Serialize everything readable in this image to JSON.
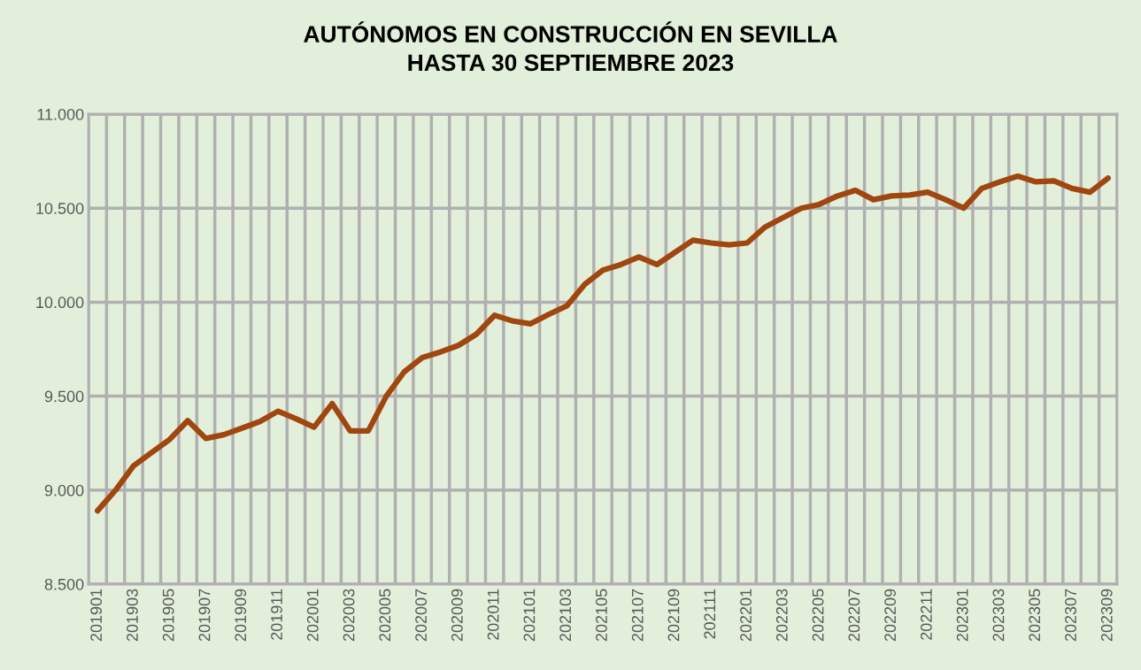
{
  "chart_data": {
    "type": "line",
    "title": "AUTÓNOMOS EN CONSTRUCCIÓN EN SEVILLA\nHASTA 30 SEPTIEMBRE 2023",
    "categories": [
      "201901",
      null,
      "201903",
      null,
      "201905",
      null,
      "201907",
      null,
      "201909",
      null,
      "201911",
      null,
      "202001",
      null,
      "202003",
      null,
      "202005",
      null,
      "202007",
      null,
      "202009",
      null,
      "202011",
      null,
      "202101",
      null,
      "202103",
      null,
      "202105",
      null,
      "202107",
      null,
      "202109",
      null,
      "202111",
      null,
      "202201",
      null,
      "202203",
      null,
      "202205",
      null,
      "202207",
      null,
      "202209",
      null,
      "202211",
      null,
      "202301",
      null,
      "202303",
      null,
      "202305",
      null,
      "202307",
      null,
      "202309"
    ],
    "series": [
      {
        "color": "#a0460e",
        "values": [
          8890,
          9000,
          9130,
          9200,
          9270,
          9370,
          9275,
          9295,
          9330,
          9365,
          9420,
          9380,
          9335,
          9460,
          9315,
          9315,
          9500,
          9630,
          9705,
          9735,
          9770,
          9830,
          9930,
          9900,
          9885,
          9935,
          9980,
          10095,
          10170,
          10200,
          10240,
          10200,
          10265,
          10330,
          10315,
          10305,
          10315,
          10400,
          10450,
          10500,
          10520,
          10565,
          10595,
          10545,
          10565,
          10570,
          10585,
          10545,
          10500,
          10605,
          10640,
          10670,
          10640,
          10645,
          10605,
          10585,
          10660
        ]
      }
    ],
    "ylim": [
      8500,
      11000
    ],
    "yticks": [
      {
        "value": 8500,
        "label": "8.500"
      },
      {
        "value": 9000,
        "label": "9.000"
      },
      {
        "value": 9500,
        "label": "9.500"
      },
      {
        "value": 10000,
        "label": "10.000"
      },
      {
        "value": 10500,
        "label": "10.500"
      },
      {
        "value": 11000,
        "label": "11.000"
      }
    ],
    "grid": true,
    "legend": false,
    "marker": "none",
    "line_style": "solid"
  }
}
